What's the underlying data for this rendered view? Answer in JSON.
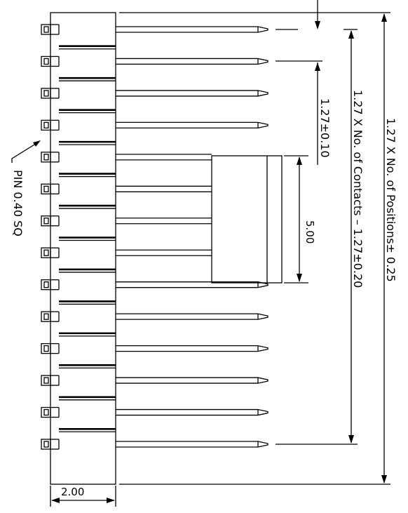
{
  "drawing": {
    "pin_count": 14,
    "label_pin": "PIN 0.40 SQ",
    "dim_pitch": "1.27±0.10",
    "dim_tab": "5.00",
    "dim_contacts": "1.27 X No. of Contacts – 1.27±0.20",
    "dim_positions": "1.27 X No. of Positions± 0.25",
    "dim_width": "2.00"
  }
}
